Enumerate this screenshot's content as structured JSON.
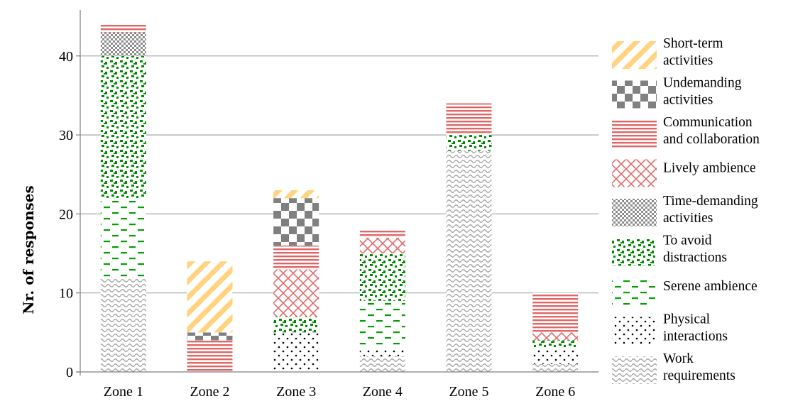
{
  "chart_data": {
    "type": "bar",
    "stacked": true,
    "ylabel": "Nr. of responses",
    "xlabel": "",
    "ylim": [
      0,
      45
    ],
    "yticks": [
      0,
      10,
      20,
      30,
      40
    ],
    "grid": true,
    "legend_position": "right",
    "categories": [
      "Zone 1",
      "Zone 2",
      "Zone 3",
      "Zone 4",
      "Zone 5",
      "Zone 6"
    ],
    "series": [
      {
        "name": "Work requirements",
        "pattern": "wave",
        "color": "#a6a6a6",
        "values": [
          12,
          0,
          0,
          2,
          28,
          1
        ]
      },
      {
        "name": "Physical interactions",
        "pattern": "dots",
        "color": "#000000",
        "values": [
          0,
          0,
          5,
          1,
          0,
          2
        ]
      },
      {
        "name": "Serene ambience",
        "pattern": "dashes",
        "color": "#00a000",
        "values": [
          10,
          0,
          0,
          6,
          0,
          0
        ]
      },
      {
        "name": "To avoid distractions",
        "pattern": "confetti",
        "color": "#008a00",
        "values": [
          18,
          0,
          2,
          6,
          2,
          1
        ]
      },
      {
        "name": "Time-demanding activities",
        "pattern": "smallcheck",
        "color": "#8c8c8c",
        "values": [
          3,
          0,
          0,
          0,
          0,
          0
        ]
      },
      {
        "name": "Lively ambience",
        "pattern": "diamond",
        "color": "#e26a6a",
        "values": [
          0,
          0,
          6,
          2,
          0,
          1
        ]
      },
      {
        "name": "Communication and collaboration",
        "pattern": "hlines",
        "color": "#e06666",
        "values": [
          1,
          4,
          3,
          1,
          4,
          5
        ]
      },
      {
        "name": "Undemanding activities",
        "pattern": "largecheck",
        "color": "#808080",
        "values": [
          0,
          1,
          6,
          0,
          0,
          0
        ]
      },
      {
        "name": "Short-term activities",
        "pattern": "diagonal",
        "color": "#ffd37f",
        "values": [
          0,
          9,
          1,
          0,
          0,
          0
        ]
      }
    ],
    "legend": [
      {
        "key": "short",
        "series": "Short-term activities",
        "lines": [
          "Short-term",
          "activities"
        ]
      },
      {
        "key": "undem",
        "series": "Undemanding activities",
        "lines": [
          "Undemanding",
          "activities"
        ]
      },
      {
        "key": "comm",
        "series": "Communication and collaboration",
        "lines": [
          "Communication",
          "and collaboration"
        ]
      },
      {
        "key": "lively",
        "series": "Lively ambience",
        "lines": [
          "Lively ambience"
        ]
      },
      {
        "key": "time",
        "series": "Time-demanding activities",
        "lines": [
          "Time-demanding",
          "activities"
        ]
      },
      {
        "key": "avoid",
        "series": "To avoid distractions",
        "lines": [
          "To avoid",
          "distractions"
        ]
      },
      {
        "key": "serene",
        "series": "Serene ambience",
        "lines": [
          "Serene ambience"
        ]
      },
      {
        "key": "phys",
        "series": "Physical interactions",
        "lines": [
          "Physical",
          "interactions"
        ]
      },
      {
        "key": "work",
        "series": "Work requirements",
        "lines": [
          "Work",
          "requirements"
        ]
      }
    ]
  }
}
